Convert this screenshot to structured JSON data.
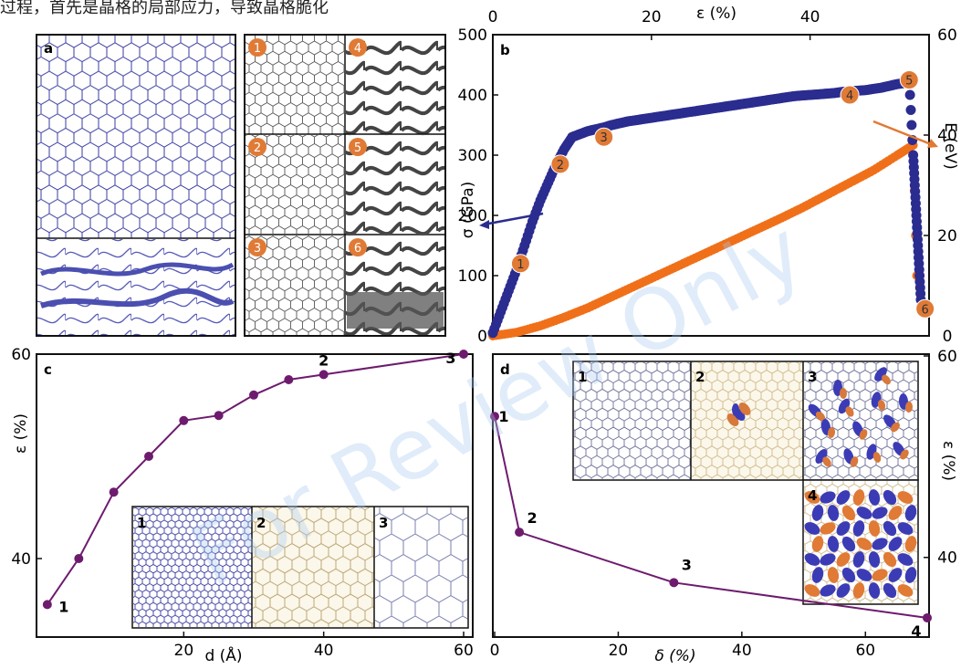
{
  "caption_partial": "过程，首先是晶格的局部应力，导致晶格脆化",
  "panel_labels": {
    "a": "a",
    "b": "b",
    "c": "c",
    "d": "d"
  },
  "watermark": "For Review Only",
  "colors": {
    "navy": "#2b2c8f",
    "orange": "#f0701a",
    "purple": "#6e1b6e",
    "gray": "#444444",
    "lattice_a": "#3a3ca0"
  },
  "panel_a_snapshots": [
    "1",
    "2",
    "3",
    "4",
    "5",
    "6"
  ],
  "chart_data": [
    {
      "id": "b",
      "type": "scatter",
      "x_axis": {
        "label": "ε (%)",
        "position": "top",
        "ticks": [
          "0",
          "20",
          "40"
        ],
        "range": [
          0,
          55
        ]
      },
      "y_axis_left": {
        "label": "σ (GPa)",
        "ticks": [
          "0",
          "100",
          "200",
          "300",
          "400",
          "500"
        ],
        "range": [
          0,
          500
        ]
      },
      "y_axis_right": {
        "label": "E (eV)",
        "ticks": [
          "0",
          "20",
          "40",
          "60"
        ],
        "range": [
          0,
          60
        ]
      },
      "series": [
        {
          "color": "#2b2c8f",
          "axis": "left",
          "x": [
            0,
            1,
            2,
            3,
            4,
            5,
            6,
            7,
            8,
            9,
            10,
            11,
            12,
            13,
            14,
            15,
            16,
            17,
            18,
            19,
            20,
            21,
            22,
            23,
            24,
            25,
            26,
            27,
            28,
            29,
            30,
            31,
            32,
            33,
            34,
            35,
            36,
            37,
            38,
            39,
            40,
            41,
            42,
            43,
            44,
            45,
            46,
            47,
            48,
            49,
            50,
            51,
            52,
            52.5,
            53,
            53.2,
            53.4,
            53.6,
            53.8,
            54
          ],
          "y": [
            5,
            40,
            75,
            110,
            150,
            190,
            225,
            255,
            285,
            310,
            330,
            335,
            340,
            343,
            346,
            350,
            353,
            356,
            358,
            360,
            362,
            364,
            366,
            368,
            370,
            372,
            374,
            376,
            378,
            380,
            382,
            384,
            386,
            388,
            390,
            392,
            394,
            396,
            398,
            399,
            400,
            401,
            402,
            403,
            405,
            406,
            407,
            408,
            410,
            412,
            415,
            418,
            420,
            425,
            300,
            250,
            200,
            150,
            100,
            50
          ]
        },
        {
          "color": "#f0701a",
          "axis": "right",
          "x": [
            0,
            3,
            6,
            9,
            12,
            15,
            18,
            21,
            24,
            27,
            30,
            33,
            36,
            39,
            42,
            45,
            48,
            51,
            53,
            53.3,
            53.6
          ],
          "y": [
            0,
            0.7,
            2,
            3.7,
            5.6,
            7.8,
            10,
            12.2,
            14.4,
            16.6,
            18.8,
            21,
            23.2,
            25.5,
            28,
            30.5,
            33,
            36,
            38,
            20,
            4
          ]
        }
      ],
      "annotations": [
        {
          "label": "1",
          "x": 3.5,
          "y": 120
        },
        {
          "label": "2",
          "x": 8.5,
          "y": 285
        },
        {
          "label": "3",
          "x": 14,
          "y": 330
        },
        {
          "label": "4",
          "x": 45,
          "y": 400
        },
        {
          "label": "5",
          "x": 52.5,
          "y": 425
        },
        {
          "label": "6",
          "x": 54.5,
          "y": 45
        }
      ]
    },
    {
      "id": "c",
      "type": "line",
      "x_axis": {
        "label": "d (Å)",
        "ticks": [
          "20",
          "40",
          "60"
        ],
        "range": [
          0,
          60
        ]
      },
      "y_axis": {
        "label": "ε (%)",
        "ticks": [
          "40",
          "60"
        ],
        "range": [
          35,
          60
        ]
      },
      "series": [
        {
          "color": "#6e1b6e",
          "x": [
            0.5,
            5,
            10,
            15,
            20,
            25,
            30,
            35,
            40,
            60
          ],
          "y": [
            35.5,
            40,
            46.5,
            50,
            53.5,
            54,
            56,
            57.5,
            58,
            60
          ]
        }
      ],
      "annotations": [
        {
          "label": "1",
          "x": 0.5,
          "y": 35.5
        },
        {
          "label": "2",
          "x": 40,
          "y": 58
        },
        {
          "label": "3",
          "x": 60,
          "y": 60
        }
      ],
      "inset_labels": [
        "1",
        "2",
        "3"
      ]
    },
    {
      "id": "d",
      "type": "line",
      "x_axis": {
        "label": "δ (%)",
        "ticks": [
          "0",
          "20",
          "40",
          "60"
        ],
        "range": [
          0,
          70
        ]
      },
      "y_axis": {
        "label": "ε (%)",
        "position": "right",
        "ticks": [
          "40",
          "60"
        ],
        "range": [
          33,
          60
        ]
      },
      "series": [
        {
          "color": "#6e1b6e",
          "x": [
            0,
            4,
            29,
            70
          ],
          "y": [
            54,
            42.5,
            37.5,
            34
          ]
        }
      ],
      "annotations": [
        {
          "label": "1",
          "x": 0,
          "y": 54
        },
        {
          "label": "2",
          "x": 4,
          "y": 42.5
        },
        {
          "label": "3",
          "x": 29,
          "y": 37.5
        },
        {
          "label": "4",
          "x": 70,
          "y": 34
        }
      ],
      "inset_labels": [
        "1",
        "2",
        "3",
        "4"
      ]
    }
  ]
}
